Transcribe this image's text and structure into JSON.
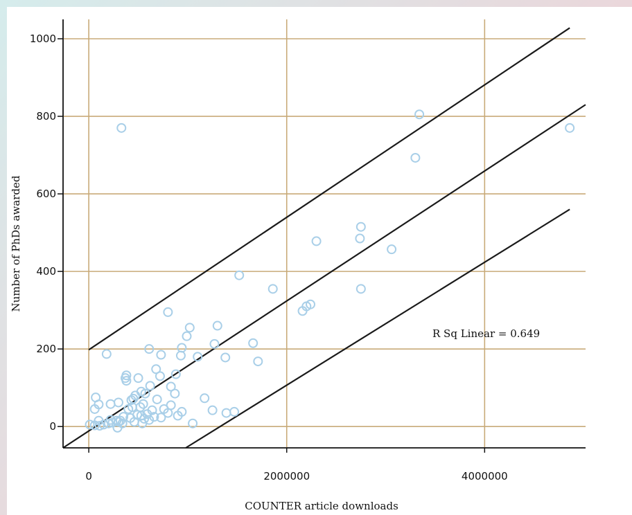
{
  "chart_data": {
    "type": "scatter",
    "xlabel": "COUNTER article downloads",
    "ylabel": "Number of PhDs awarded",
    "xlim": [
      -260000,
      5020000
    ],
    "ylim": [
      -55,
      1050
    ],
    "x_ticks": [
      0,
      2000000,
      4000000
    ],
    "x_tick_labels": [
      "0",
      "2000000",
      "4000000"
    ],
    "y_ticks": [
      0,
      200,
      400,
      600,
      800,
      1000
    ],
    "y_tick_labels": [
      "0",
      "200",
      "400",
      "600",
      "800",
      "1000"
    ],
    "grid": true,
    "annotation": "R Sq Linear = 0.649",
    "marker_color": "#a9cfe8",
    "line_color": "#1a1a1a",
    "grid_color": "#c8aa78",
    "fit_lines": [
      {
        "role": "upper",
        "x": [
          0,
          4860000
        ],
        "y": [
          198,
          1028
        ]
      },
      {
        "role": "fit",
        "x": [
          -260000,
          5020000
        ],
        "y": [
          -55,
          830
        ]
      },
      {
        "role": "lower",
        "x": [
          980000,
          4860000
        ],
        "y": [
          -55,
          560
        ]
      }
    ],
    "points": [
      [
        330000,
        770
      ],
      [
        3340000,
        805
      ],
      [
        3300000,
        693
      ],
      [
        4860000,
        770
      ],
      [
        2750000,
        515
      ],
      [
        2740000,
        485
      ],
      [
        2300000,
        478
      ],
      [
        3060000,
        457
      ],
      [
        1520000,
        390
      ],
      [
        1860000,
        355
      ],
      [
        2750000,
        355
      ],
      [
        2240000,
        315
      ],
      [
        2200000,
        310
      ],
      [
        2160000,
        298
      ],
      [
        800000,
        295
      ],
      [
        1300000,
        260
      ],
      [
        1020000,
        255
      ],
      [
        990000,
        233
      ],
      [
        1270000,
        213
      ],
      [
        1660000,
        215
      ],
      [
        940000,
        203
      ],
      [
        610000,
        200
      ],
      [
        180000,
        187
      ],
      [
        730000,
        185
      ],
      [
        930000,
        183
      ],
      [
        1100000,
        180
      ],
      [
        1380000,
        178
      ],
      [
        1710000,
        168
      ],
      [
        680000,
        148
      ],
      [
        720000,
        130
      ],
      [
        880000,
        135
      ],
      [
        380000,
        132
      ],
      [
        370000,
        125
      ],
      [
        380000,
        118
      ],
      [
        500000,
        125
      ],
      [
        830000,
        103
      ],
      [
        620000,
        105
      ],
      [
        530000,
        90
      ],
      [
        570000,
        85
      ],
      [
        870000,
        85
      ],
      [
        470000,
        80
      ],
      [
        450000,
        72
      ],
      [
        430000,
        68
      ],
      [
        690000,
        70
      ],
      [
        1170000,
        73
      ],
      [
        70000,
        75
      ],
      [
        300000,
        62
      ],
      [
        220000,
        58
      ],
      [
        100000,
        57
      ],
      [
        550000,
        58
      ],
      [
        440000,
        50
      ],
      [
        520000,
        50
      ],
      [
        830000,
        55
      ],
      [
        400000,
        45
      ],
      [
        640000,
        42
      ],
      [
        760000,
        45
      ],
      [
        1250000,
        42
      ],
      [
        940000,
        38
      ],
      [
        1470000,
        38
      ],
      [
        60000,
        45
      ],
      [
        590000,
        32
      ],
      [
        490000,
        30
      ],
      [
        530000,
        28
      ],
      [
        800000,
        35
      ],
      [
        1390000,
        35
      ],
      [
        350000,
        25
      ],
      [
        420000,
        22
      ],
      [
        660000,
        25
      ],
      [
        730000,
        23
      ],
      [
        900000,
        28
      ],
      [
        100000,
        15
      ],
      [
        220000,
        17
      ],
      [
        280000,
        15
      ],
      [
        300000,
        12
      ],
      [
        560000,
        20
      ],
      [
        610000,
        17
      ],
      [
        240000,
        10
      ],
      [
        340000,
        8
      ],
      [
        460000,
        12
      ],
      [
        540000,
        8
      ],
      [
        1050000,
        8
      ],
      [
        10000,
        5
      ],
      [
        150000,
        5
      ],
      [
        60000,
        3
      ],
      [
        110000,
        2
      ],
      [
        290000,
        -3
      ],
      [
        200000,
        8
      ],
      [
        320000,
        15
      ]
    ]
  }
}
